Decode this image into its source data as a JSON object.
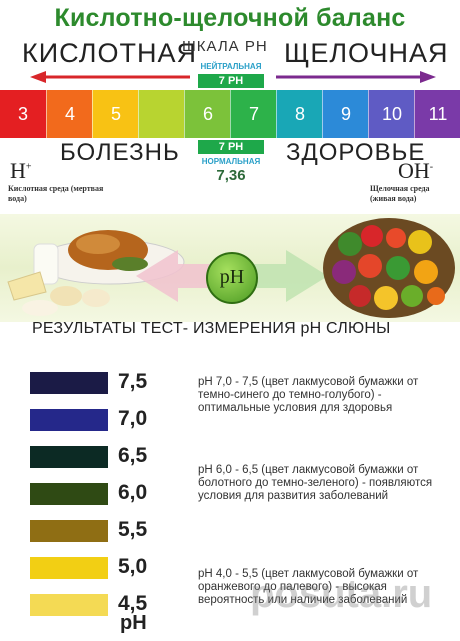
{
  "title": "Кислотно-щелочной баланс",
  "scale": {
    "acid_label": "КИСЛОТНАЯ",
    "scale_label": "ШКАЛА РН",
    "alkaline_label": "ЩЕЛОЧНАЯ",
    "neutral_label": "НЕЙТРАЛЬНАЯ",
    "neutral_badge": "7 РН",
    "cells": [
      {
        "label": "3",
        "color": "#e41f22"
      },
      {
        "label": "4",
        "color": "#f26a1c"
      },
      {
        "label": "5",
        "color": "#f8c214"
      },
      {
        "label": "",
        "color": "#b8d430"
      },
      {
        "label": "6",
        "color": "#7cc23a"
      },
      {
        "label": "7",
        "color": "#2db24a"
      },
      {
        "label": "8",
        "color": "#19a7b6"
      },
      {
        "label": "9",
        "color": "#2c8ad8"
      },
      {
        "label": "10",
        "color": "#5f5bc4"
      },
      {
        "label": "11",
        "color": "#7a3aa8"
      }
    ]
  },
  "bottom_labels": {
    "disease": "БОЛЕЗНЬ",
    "health": "ЗДОРОВЬЕ",
    "normal_badge": "7 РН",
    "normal_label": "НОРМАЛЬНАЯ",
    "normal_value": "7,36",
    "h_plus": "H",
    "h_plus_sup": "+",
    "oh_minus": "OH",
    "oh_minus_sup": "-",
    "acid_env": "Кислотная среда (мертвая вода)",
    "alk_env": "Щелочная среда (живая вода)"
  },
  "food_band": {
    "ph_label": "pH"
  },
  "results_title": "РЕЗУЛЬТАТЫ ТЕСТ- ИЗМЕРЕНИЯ рН СЛЮНЫ",
  "swatches": [
    {
      "value": "7,5",
      "color": "#1b1b46"
    },
    {
      "value": "7,0",
      "color": "#25288a"
    },
    {
      "value": "6,5",
      "color": "#0c2a24"
    },
    {
      "value": "6,0",
      "color": "#2f4a14"
    },
    {
      "value": "5,5",
      "color": "#8f6e14"
    },
    {
      "value": "5,0",
      "color": "#f2cf14"
    },
    {
      "value": "4,5",
      "color": "#f4da54"
    }
  ],
  "ph_unit": "pH",
  "descriptions": [
    "pH 7,0 - 7,5 (цвет лакмусовой бумажки от темно-синего до темно-голубого) - оптимальные условия для здоровья",
    "pH 6,0 - 6,5 (цвет лакмусовой бумажки от болотного до темно-зеленого) - появляются условия для развития заболеваний",
    "pH 4,0 - 5,5 (цвет лакмусовой бумажки от оранжевого до палевого) - высокая вероятность или наличие заболеваний"
  ],
  "watermark": "posuta.ru",
  "colors": {
    "title_green": "#2d8a2d",
    "acid_arrow": "#d8262a",
    "alk_arrow": "#7b2a8e",
    "badge_green": "#1ea84a",
    "label_blue": "#2aa0c8"
  }
}
